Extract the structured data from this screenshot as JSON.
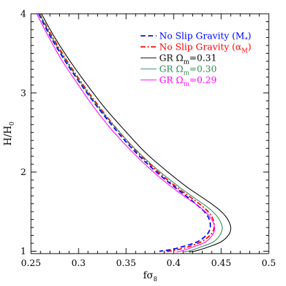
{
  "chart_data": {
    "type": "line",
    "title": "",
    "xlabel": "fσ",
    "xlabel_sub": "8",
    "ylabel": "H/H",
    "ylabel_sub": "0",
    "xlim": [
      0.25,
      0.5
    ],
    "ylim": [
      0.97,
      4.0
    ],
    "xticks": [
      0.25,
      0.3,
      0.35,
      0.4,
      0.45,
      0.5
    ],
    "xtick_labels": [
      "0.25",
      "0.3",
      "0.35",
      "0.4",
      "0.45",
      "0.5"
    ],
    "yticks": [
      1,
      2,
      3,
      4
    ],
    "ytick_labels": [
      "1",
      "2",
      "3",
      "4"
    ],
    "legend_position": "top-right",
    "series": [
      {
        "name_parts": [
          "No Slip Gravity (M",
          "*",
          ")"
        ],
        "color": "#0000ff",
        "style": "dashed",
        "points": [
          [
            0.258,
            4.0
          ],
          [
            0.27,
            3.72
          ],
          [
            0.285,
            3.42
          ],
          [
            0.3,
            3.15
          ],
          [
            0.32,
            2.82
          ],
          [
            0.34,
            2.52
          ],
          [
            0.36,
            2.25
          ],
          [
            0.38,
            2.02
          ],
          [
            0.4,
            1.82
          ],
          [
            0.415,
            1.68
          ],
          [
            0.425,
            1.58
          ],
          [
            0.433,
            1.49
          ],
          [
            0.4375,
            1.4
          ],
          [
            0.4385,
            1.3
          ],
          [
            0.435,
            1.21
          ],
          [
            0.425,
            1.12
          ],
          [
            0.41,
            1.06
          ],
          [
            0.397,
            1.02
          ],
          [
            0.385,
            1.0
          ]
        ]
      },
      {
        "name_parts": [
          "No Slip Gravity (α",
          "M",
          ")"
        ],
        "color": "#ff0000",
        "style": "dashdot",
        "points": [
          [
            0.259,
            4.0
          ],
          [
            0.272,
            3.72
          ],
          [
            0.287,
            3.42
          ],
          [
            0.302,
            3.15
          ],
          [
            0.322,
            2.82
          ],
          [
            0.342,
            2.52
          ],
          [
            0.362,
            2.25
          ],
          [
            0.382,
            2.02
          ],
          [
            0.402,
            1.82
          ],
          [
            0.418,
            1.68
          ],
          [
            0.429,
            1.58
          ],
          [
            0.437,
            1.49
          ],
          [
            0.4415,
            1.4
          ],
          [
            0.4425,
            1.3
          ],
          [
            0.439,
            1.21
          ],
          [
            0.429,
            1.12
          ],
          [
            0.414,
            1.05
          ],
          [
            0.4,
            1.01
          ],
          [
            0.39,
            0.99
          ]
        ]
      },
      {
        "name_parts": [
          "GR Ω",
          "m",
          "=0.31"
        ],
        "color": "#000000",
        "style": "solid",
        "points": [
          [
            0.261,
            4.0
          ],
          [
            0.274,
            3.72
          ],
          [
            0.29,
            3.42
          ],
          [
            0.306,
            3.15
          ],
          [
            0.327,
            2.82
          ],
          [
            0.349,
            2.52
          ],
          [
            0.37,
            2.25
          ],
          [
            0.392,
            2.02
          ],
          [
            0.413,
            1.82
          ],
          [
            0.43,
            1.68
          ],
          [
            0.442,
            1.58
          ],
          [
            0.451,
            1.49
          ],
          [
            0.457,
            1.4
          ],
          [
            0.46,
            1.3
          ],
          [
            0.458,
            1.21
          ],
          [
            0.45,
            1.12
          ],
          [
            0.438,
            1.06
          ],
          [
            0.425,
            1.01
          ],
          [
            0.416,
            0.99
          ]
        ]
      },
      {
        "name_parts": [
          "GR Ω",
          "m",
          "=0.30"
        ],
        "color": "#2e8b57",
        "style": "solid",
        "points": [
          [
            0.259,
            4.0
          ],
          [
            0.271,
            3.72
          ],
          [
            0.286,
            3.42
          ],
          [
            0.301,
            3.15
          ],
          [
            0.321,
            2.82
          ],
          [
            0.342,
            2.52
          ],
          [
            0.363,
            2.25
          ],
          [
            0.384,
            2.02
          ],
          [
            0.405,
            1.82
          ],
          [
            0.421,
            1.68
          ],
          [
            0.433,
            1.58
          ],
          [
            0.442,
            1.49
          ],
          [
            0.448,
            1.4
          ],
          [
            0.451,
            1.3
          ],
          [
            0.449,
            1.21
          ],
          [
            0.442,
            1.12
          ],
          [
            0.43,
            1.06
          ],
          [
            0.418,
            1.01
          ],
          [
            0.41,
            0.99
          ]
        ]
      },
      {
        "name_parts": [
          "GR Ω",
          "m",
          "=0.29"
        ],
        "color": "#ff00ff",
        "style": "solid",
        "points": [
          [
            0.256,
            4.0
          ],
          [
            0.268,
            3.72
          ],
          [
            0.282,
            3.42
          ],
          [
            0.297,
            3.15
          ],
          [
            0.316,
            2.82
          ],
          [
            0.336,
            2.52
          ],
          [
            0.357,
            2.25
          ],
          [
            0.377,
            2.02
          ],
          [
            0.397,
            1.82
          ],
          [
            0.413,
            1.68
          ],
          [
            0.425,
            1.58
          ],
          [
            0.434,
            1.49
          ],
          [
            0.44,
            1.4
          ],
          [
            0.443,
            1.3
          ],
          [
            0.441,
            1.21
          ],
          [
            0.434,
            1.12
          ],
          [
            0.422,
            1.06
          ],
          [
            0.41,
            1.01
          ],
          [
            0.403,
            0.99
          ]
        ]
      }
    ]
  }
}
